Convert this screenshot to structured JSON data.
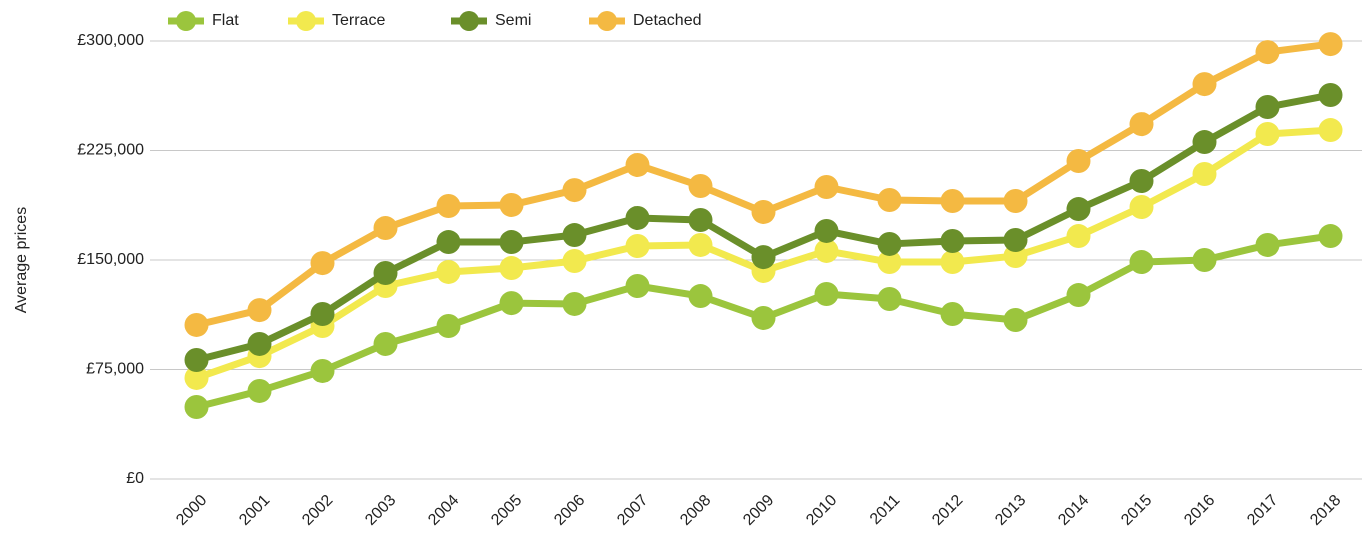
{
  "chart_data": {
    "type": "line",
    "y_label": "Average prices",
    "categories": [
      "2000",
      "2001",
      "2002",
      "2003",
      "2004",
      "2005",
      "2006",
      "2007",
      "2008",
      "2009",
      "2010",
      "2011",
      "2012",
      "2013",
      "2014",
      "2015",
      "2016",
      "2017",
      "2018"
    ],
    "series": [
      {
        "name": "Flat",
        "color": "#9bc53d",
        "values": [
          49300,
          60300,
          74000,
          92500,
          104800,
          120500,
          119900,
          132200,
          125300,
          110300,
          126700,
          123300,
          113000,
          108900,
          126000,
          148600,
          150000,
          160300,
          166400
        ]
      },
      {
        "name": "Terrace",
        "color": "#f2e94e",
        "values": [
          69200,
          84200,
          104800,
          132200,
          141800,
          144500,
          149300,
          159600,
          160300,
          142500,
          156200,
          148600,
          148600,
          152700,
          166400,
          186300,
          208900,
          236300,
          239000
        ]
      },
      {
        "name": "Semi",
        "color": "#6a8f2a",
        "values": [
          81500,
          92500,
          113000,
          141100,
          162300,
          162300,
          167100,
          178800,
          177400,
          152000,
          169900,
          161000,
          163000,
          163700,
          184900,
          204100,
          230800,
          254800,
          263000
        ]
      },
      {
        "name": "Detached",
        "color": "#f4b942",
        "values": [
          105500,
          115700,
          147900,
          171900,
          187000,
          187700,
          197900,
          215100,
          200700,
          182900,
          200000,
          191100,
          190400,
          190400,
          217800,
          243100,
          270500,
          292400,
          297900
        ]
      }
    ],
    "ylim": [
      0,
      300000
    ],
    "yticks": [
      {
        "value": 0,
        "label": "£0"
      },
      {
        "value": 75000,
        "label": "£75,000"
      },
      {
        "value": 150000,
        "label": "£150,000"
      },
      {
        "value": 225000,
        "label": "£225,000"
      },
      {
        "value": 300000,
        "label": "£300,000"
      }
    ],
    "grid": true
  }
}
